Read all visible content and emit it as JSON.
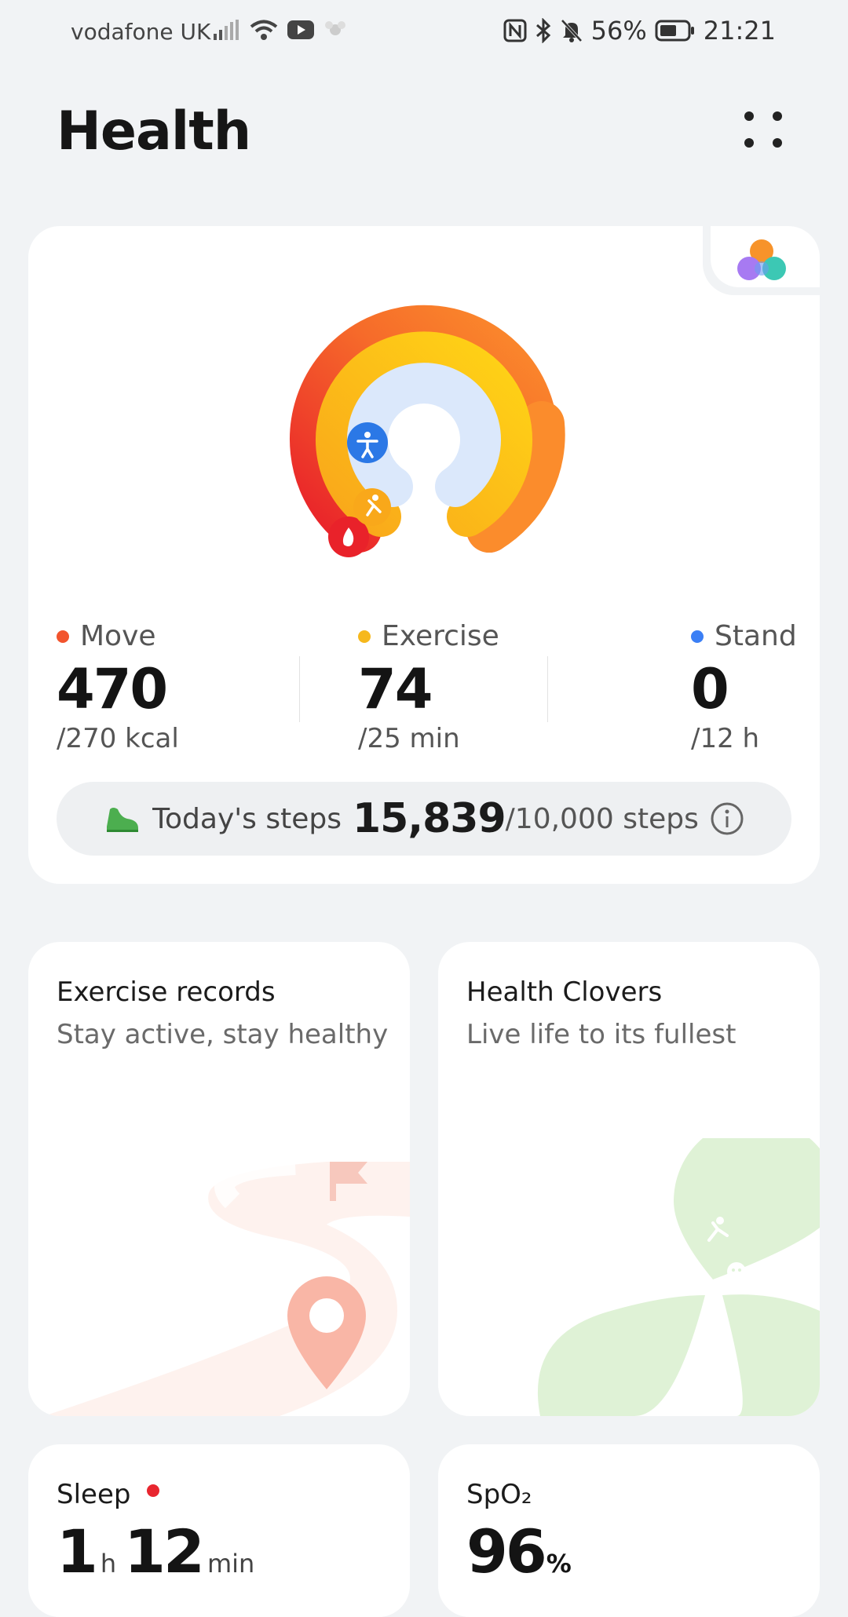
{
  "status_bar": {
    "carrier": "vodafone UK",
    "battery": "56%",
    "time": "21:21",
    "icons": [
      "signal-icon",
      "wifi-icon",
      "youtube-icon",
      "app-icon",
      "nfc-icon",
      "bluetooth-icon",
      "mute-icon",
      "battery-icon"
    ]
  },
  "header": {
    "title": "Health"
  },
  "activity": {
    "move": {
      "label": "Move",
      "value": "470",
      "goal": "/270 kcal",
      "color": "#f2542d"
    },
    "exercise": {
      "label": "Exercise",
      "value": "74",
      "goal": "/25 min",
      "color": "#f6b81c"
    },
    "stand": {
      "label": "Stand",
      "value": "0",
      "goal": "/12 h",
      "color": "#3b7ff5"
    },
    "steps": {
      "label": "Today's steps",
      "value": "15,839",
      "goal": "/10,000 steps"
    }
  },
  "cards": {
    "exercise_records": {
      "title": "Exercise records",
      "subtitle": "Stay active, stay healthy"
    },
    "health_clovers": {
      "title": "Health Clovers",
      "subtitle": "Live life to its fullest"
    },
    "sleep": {
      "title": "Sleep",
      "hours": "1",
      "h_unit": "h",
      "minutes": "12",
      "min_unit": "min"
    },
    "spo2": {
      "title": "SpO₂",
      "value": "96",
      "unit": "%"
    }
  }
}
